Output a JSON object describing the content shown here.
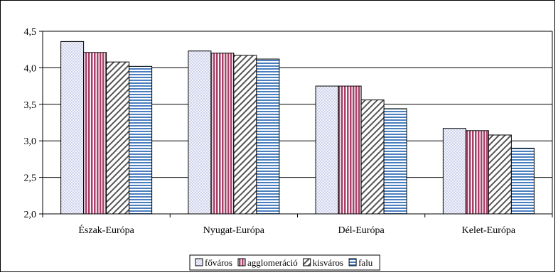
{
  "chart_data": {
    "type": "bar",
    "categories": [
      "Észak-Európa",
      "Nyugat-Európa",
      "Dél-Európa",
      "Kelet-Európa"
    ],
    "series": [
      {
        "name": "főváros",
        "values": [
          4.36,
          4.23,
          3.75,
          3.17
        ],
        "color": "#c8cde8",
        "pattern": "dotted"
      },
      {
        "name": "agglomeráció",
        "values": [
          4.21,
          4.2,
          3.75,
          3.14
        ],
        "color": "#a8406a",
        "pattern": "vertical-stripes"
      },
      {
        "name": "kisváros",
        "values": [
          4.08,
          4.17,
          3.56,
          3.08
        ],
        "color": "#555555",
        "pattern": "diagonal-stripes"
      },
      {
        "name": "falu",
        "values": [
          4.02,
          4.12,
          3.44,
          2.9
        ],
        "color": "#4a7fbf",
        "pattern": "horizontal-stripes"
      }
    ],
    "yticks": [
      "2,0",
      "2,5",
      "3,0",
      "3,5",
      "4,0",
      "4,5"
    ],
    "ylim": [
      2.0,
      4.5
    ],
    "grid": true,
    "legend_position": "bottom"
  }
}
